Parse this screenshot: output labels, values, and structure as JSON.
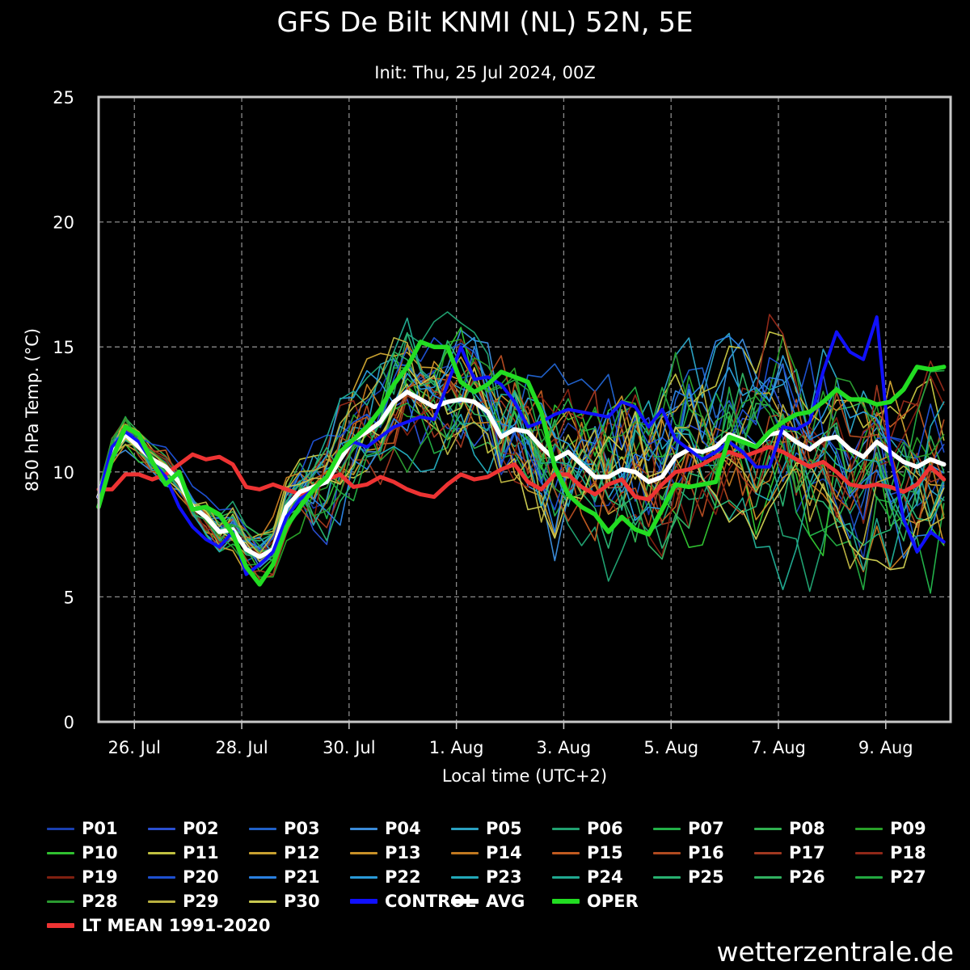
{
  "chart_data": {
    "type": "line",
    "title": "GFS De Bilt KNMI (NL) 52N, 5E",
    "subtitle": "Init: Thu, 25 Jul 2024, 00Z",
    "xlabel": "Local time (UTC+2)",
    "ylabel": "850 hPa Temp. (°C)",
    "ylim": [
      0,
      25
    ],
    "yticks": [
      0,
      5,
      10,
      15,
      20,
      25
    ],
    "x_axis": {
      "type": "datetime",
      "start": "2024-07-25T08:00",
      "end": "2024-08-10T05:00",
      "ticks": [
        {
          "label": "26. Jul",
          "date": "2024-07-26"
        },
        {
          "label": "28. Jul",
          "date": "2024-07-28"
        },
        {
          "label": "30. Jul",
          "date": "2024-07-30"
        },
        {
          "label": "1. Aug",
          "date": "2024-08-01"
        },
        {
          "label": "3. Aug",
          "date": "2024-08-03"
        },
        {
          "label": "5. Aug",
          "date": "2024-08-05"
        },
        {
          "label": "7. Aug",
          "date": "2024-08-07"
        },
        {
          "label": "9. Aug",
          "date": "2024-08-09"
        }
      ]
    },
    "grid": true,
    "legend_position": "bottom",
    "ensemble_colors": [
      "#1a3fb0",
      "#2a4fd0",
      "#2060c8",
      "#3a8ad8",
      "#2aa0c0",
      "#20a070",
      "#22b048",
      "#30b050",
      "#28a028",
      "#30c030",
      "#c0c040",
      "#c8a030",
      "#c89028",
      "#c07820",
      "#c05a20",
      "#b04a20",
      "#a03820",
      "#902818",
      "#802010",
      "#1e50d0",
      "#2a80e0",
      "#2a9ad8",
      "#22a8b8",
      "#20a890",
      "#28b070",
      "#30b060",
      "#22a840",
      "#2a9a30",
      "#b8b040",
      "#c8c850"
    ],
    "special_series": [
      {
        "name": "CONTROL",
        "color": "#1010ff"
      },
      {
        "name": "AVG",
        "color": "#ffffff"
      },
      {
        "name": "OPER",
        "color": "#22dd22"
      },
      {
        "name": "LT MEAN 1991-2020",
        "color": "#ee3333"
      }
    ],
    "series_x": [
      "2024-07-25T08:00",
      "2024-07-25T14:00",
      "2024-07-25T20:00",
      "2024-07-26T02:00",
      "2024-07-26T08:00",
      "2024-07-26T14:00",
      "2024-07-26T20:00",
      "2024-07-27T02:00",
      "2024-07-27T08:00",
      "2024-07-27T14:00",
      "2024-07-27T20:00",
      "2024-07-28T02:00",
      "2024-07-28T08:00",
      "2024-07-28T14:00",
      "2024-07-28T20:00",
      "2024-07-29T02:00",
      "2024-07-29T08:00",
      "2024-07-29T14:00",
      "2024-07-29T20:00",
      "2024-07-30T02:00",
      "2024-07-30T08:00",
      "2024-07-30T14:00",
      "2024-07-30T20:00",
      "2024-07-31T02:00",
      "2024-07-31T08:00",
      "2024-07-31T14:00",
      "2024-07-31T20:00",
      "2024-08-01T02:00",
      "2024-08-01T08:00",
      "2024-08-01T14:00",
      "2024-08-01T20:00",
      "2024-08-02T02:00",
      "2024-08-02T08:00",
      "2024-08-02T14:00",
      "2024-08-02T20:00",
      "2024-08-03T02:00",
      "2024-08-03T08:00",
      "2024-08-03T14:00",
      "2024-08-03T20:00",
      "2024-08-04T02:00",
      "2024-08-04T08:00",
      "2024-08-04T14:00",
      "2024-08-04T20:00",
      "2024-08-05T02:00",
      "2024-08-05T08:00",
      "2024-08-05T14:00",
      "2024-08-05T20:00",
      "2024-08-06T02:00",
      "2024-08-06T08:00",
      "2024-08-06T14:00",
      "2024-08-06T20:00",
      "2024-08-07T02:00",
      "2024-08-07T08:00",
      "2024-08-07T14:00",
      "2024-08-07T20:00",
      "2024-08-08T02:00",
      "2024-08-08T08:00",
      "2024-08-08T14:00",
      "2024-08-08T20:00",
      "2024-08-09T02:00",
      "2024-08-09T08:00",
      "2024-08-09T14:00",
      "2024-08-09T20:00",
      "2024-08-10T02:00"
    ],
    "series": [
      {
        "name": "LT MEAN 1991-2020",
        "values": [
          9.3,
          9.3,
          9.9,
          9.9,
          9.7,
          9.9,
          10.3,
          10.7,
          10.5,
          10.6,
          10.3,
          9.4,
          9.3,
          9.5,
          9.3,
          9.1,
          9.4,
          9.7,
          9.9,
          9.4,
          9.5,
          9.8,
          9.6,
          9.3,
          9.1,
          9.0,
          9.5,
          9.9,
          9.7,
          9.8,
          10.1,
          10.3,
          9.6,
          9.3,
          9.9,
          9.9,
          9.4,
          9.1,
          9.5,
          9.7,
          9.0,
          8.9,
          9.5,
          10.0,
          10.1,
          10.3,
          10.6,
          10.8,
          10.6,
          10.8,
          11.0,
          10.8,
          10.5,
          10.2,
          10.4,
          10.0,
          9.5,
          9.4,
          9.5,
          9.4,
          9.2,
          9.5,
          10.2,
          9.7
        ]
      },
      {
        "name": "AVG",
        "values": [
          9.0,
          10.8,
          11.5,
          11.0,
          10.5,
          10.2,
          9.6,
          8.6,
          8.2,
          7.6,
          7.7,
          6.9,
          6.6,
          6.9,
          8.6,
          9.2,
          9.4,
          9.6,
          10.5,
          11.3,
          11.6,
          12.0,
          12.8,
          13.2,
          12.9,
          12.6,
          12.8,
          12.9,
          12.8,
          12.4,
          11.4,
          11.7,
          11.6,
          11.0,
          10.5,
          10.8,
          10.3,
          9.8,
          9.8,
          10.1,
          10.0,
          9.6,
          9.8,
          10.6,
          10.9,
          10.8,
          11.0,
          11.5,
          11.3,
          11.0,
          11.5,
          11.6,
          11.2,
          10.9,
          11.3,
          11.4,
          10.9,
          10.6,
          11.2,
          10.8,
          10.4,
          10.2,
          10.5,
          10.3
        ]
      },
      {
        "name": "CONTROL",
        "values": [
          9.0,
          11.0,
          11.6,
          11.2,
          10.4,
          9.8,
          8.6,
          7.8,
          7.3,
          7.0,
          7.6,
          5.9,
          6.3,
          6.8,
          8.2,
          8.9,
          9.3,
          9.8,
          10.8,
          11.2,
          11.0,
          11.4,
          11.8,
          12.0,
          12.2,
          12.1,
          13.5,
          15.0,
          13.7,
          13.8,
          13.5,
          12.8,
          11.8,
          12.0,
          12.3,
          12.5,
          12.4,
          12.3,
          12.2,
          12.8,
          12.6,
          11.8,
          12.5,
          11.3,
          10.9,
          10.5,
          10.8,
          11.2,
          10.8,
          10.2,
          10.2,
          11.8,
          11.7,
          12.0,
          14.0,
          15.6,
          14.8,
          14.5,
          16.2,
          10.7,
          8.1,
          6.8,
          7.6,
          7.2
        ]
      },
      {
        "name": "OPER",
        "values": [
          8.6,
          10.5,
          11.8,
          11.5,
          10.4,
          9.5,
          10.0,
          8.5,
          8.6,
          8.3,
          7.5,
          6.2,
          5.5,
          6.3,
          7.8,
          8.6,
          9.3,
          9.8,
          10.8,
          11.3,
          11.8,
          12.5,
          13.5,
          14.2,
          15.2,
          15.0,
          15.0,
          13.6,
          13.2,
          13.5,
          14.0,
          13.8,
          13.6,
          12.4,
          10.2,
          9.1,
          8.6,
          8.3,
          7.6,
          8.2,
          7.7,
          7.5,
          8.5,
          9.5,
          9.4,
          9.5,
          9.6,
          11.4,
          11.2,
          11.0,
          11.6,
          12.0,
          12.3,
          12.4,
          12.8,
          13.3,
          12.9,
          12.9,
          12.7,
          12.8,
          13.3,
          14.2,
          14.1,
          14.2
        ]
      }
    ]
  },
  "legend": [
    {
      "label": "P01"
    },
    {
      "label": "P02"
    },
    {
      "label": "P03"
    },
    {
      "label": "P04"
    },
    {
      "label": "P05"
    },
    {
      "label": "P06"
    },
    {
      "label": "P07"
    },
    {
      "label": "P08"
    },
    {
      "label": "P09"
    },
    {
      "label": "P10"
    },
    {
      "label": "P11"
    },
    {
      "label": "P12"
    },
    {
      "label": "P13"
    },
    {
      "label": "P14"
    },
    {
      "label": "P15"
    },
    {
      "label": "P16"
    },
    {
      "label": "P17"
    },
    {
      "label": "P18"
    },
    {
      "label": "P19"
    },
    {
      "label": "P20"
    },
    {
      "label": "P21"
    },
    {
      "label": "P22"
    },
    {
      "label": "P23"
    },
    {
      "label": "P24"
    },
    {
      "label": "P25"
    },
    {
      "label": "P26"
    },
    {
      "label": "P27"
    },
    {
      "label": "P28"
    },
    {
      "label": "P29"
    },
    {
      "label": "P30"
    },
    {
      "label": "CONTROL"
    },
    {
      "label": "AVG"
    },
    {
      "label": "OPER"
    },
    {
      "label": "LT MEAN 1991-2020"
    }
  ],
  "watermark": "wetterzentrale.de"
}
